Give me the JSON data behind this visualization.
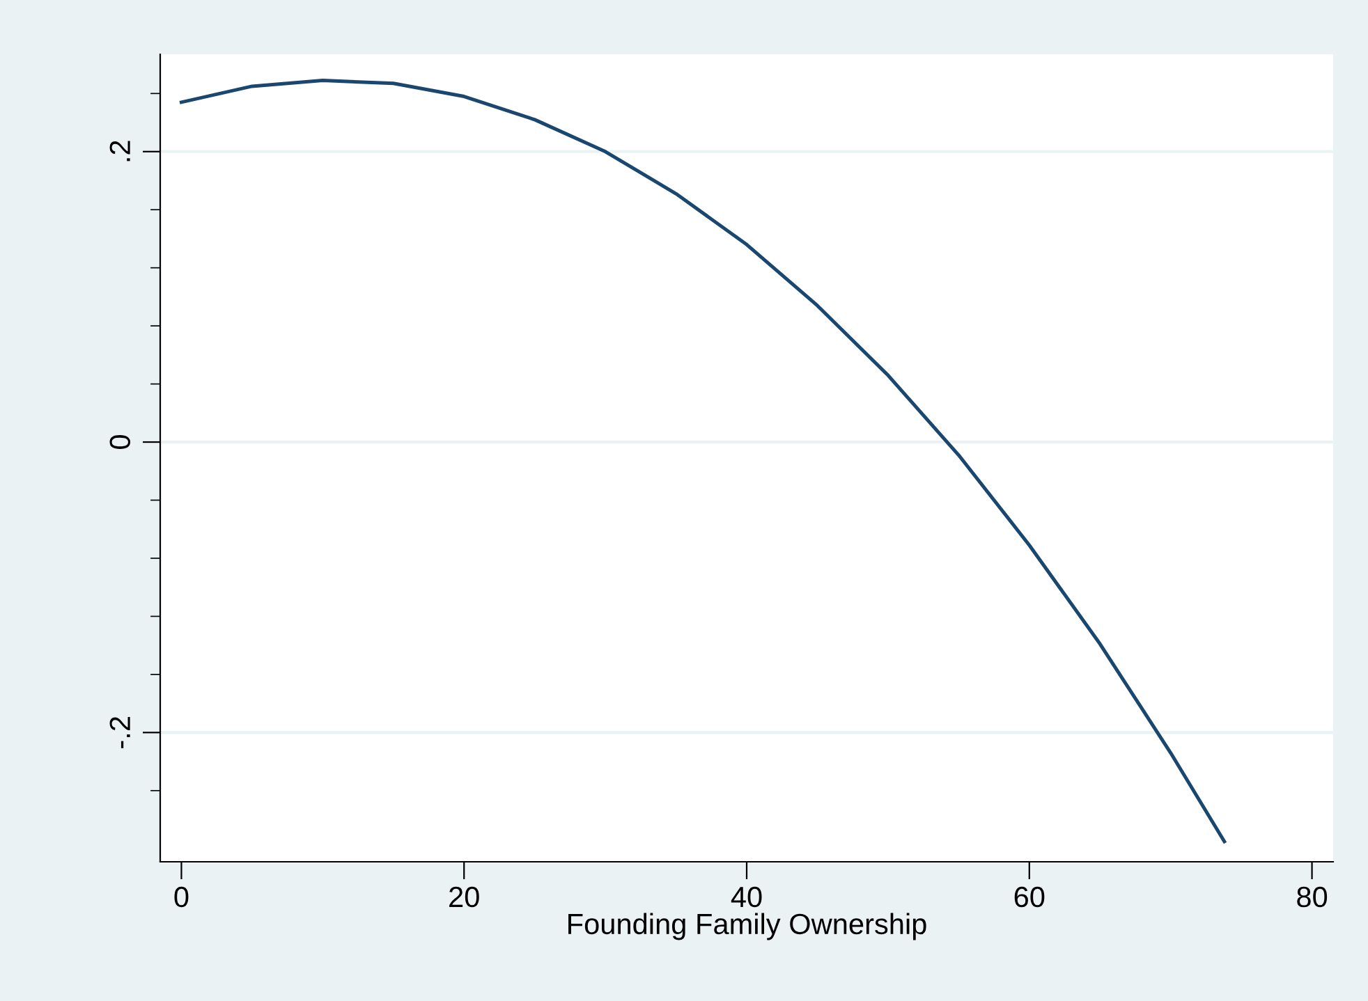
{
  "chart_data": {
    "type": "line",
    "xlabel": "Founding Family Ownership",
    "x": [
      0,
      5,
      10,
      15,
      20,
      25,
      30,
      35,
      40,
      45,
      50,
      55,
      60,
      65,
      70,
      73.8
    ],
    "series": [
      {
        "color": "#1a476f",
        "values": [
          0.234,
          0.245,
          0.249,
          0.247,
          0.238,
          0.222,
          0.2,
          0.171,
          0.136,
          0.094,
          0.046,
          -0.009,
          -0.071,
          -0.139,
          -0.214,
          -0.275
        ]
      }
    ],
    "xlim": [
      -1.5,
      81.5
    ],
    "xticks": [
      0,
      20,
      40,
      60,
      80
    ],
    "ylim": [
      -0.289,
      0.267
    ],
    "yticks": [
      {
        "value": 0.24,
        "label": null
      },
      {
        "value": 0.2,
        "label": ".2"
      },
      {
        "value": 0.16,
        "label": null
      },
      {
        "value": 0.12,
        "label": null
      },
      {
        "value": 0.08,
        "label": null
      },
      {
        "value": 0.04,
        "label": null
      },
      {
        "value": 0,
        "label": "0"
      },
      {
        "value": -0.04,
        "label": null
      },
      {
        "value": -0.08,
        "label": null
      },
      {
        "value": -0.12,
        "label": null
      },
      {
        "value": -0.16,
        "label": null
      },
      {
        "value": -0.2,
        "label": "-.2"
      },
      {
        "value": -0.24,
        "label": null
      }
    ],
    "grid": "y",
    "marker": "none",
    "line_style": "solid"
  }
}
